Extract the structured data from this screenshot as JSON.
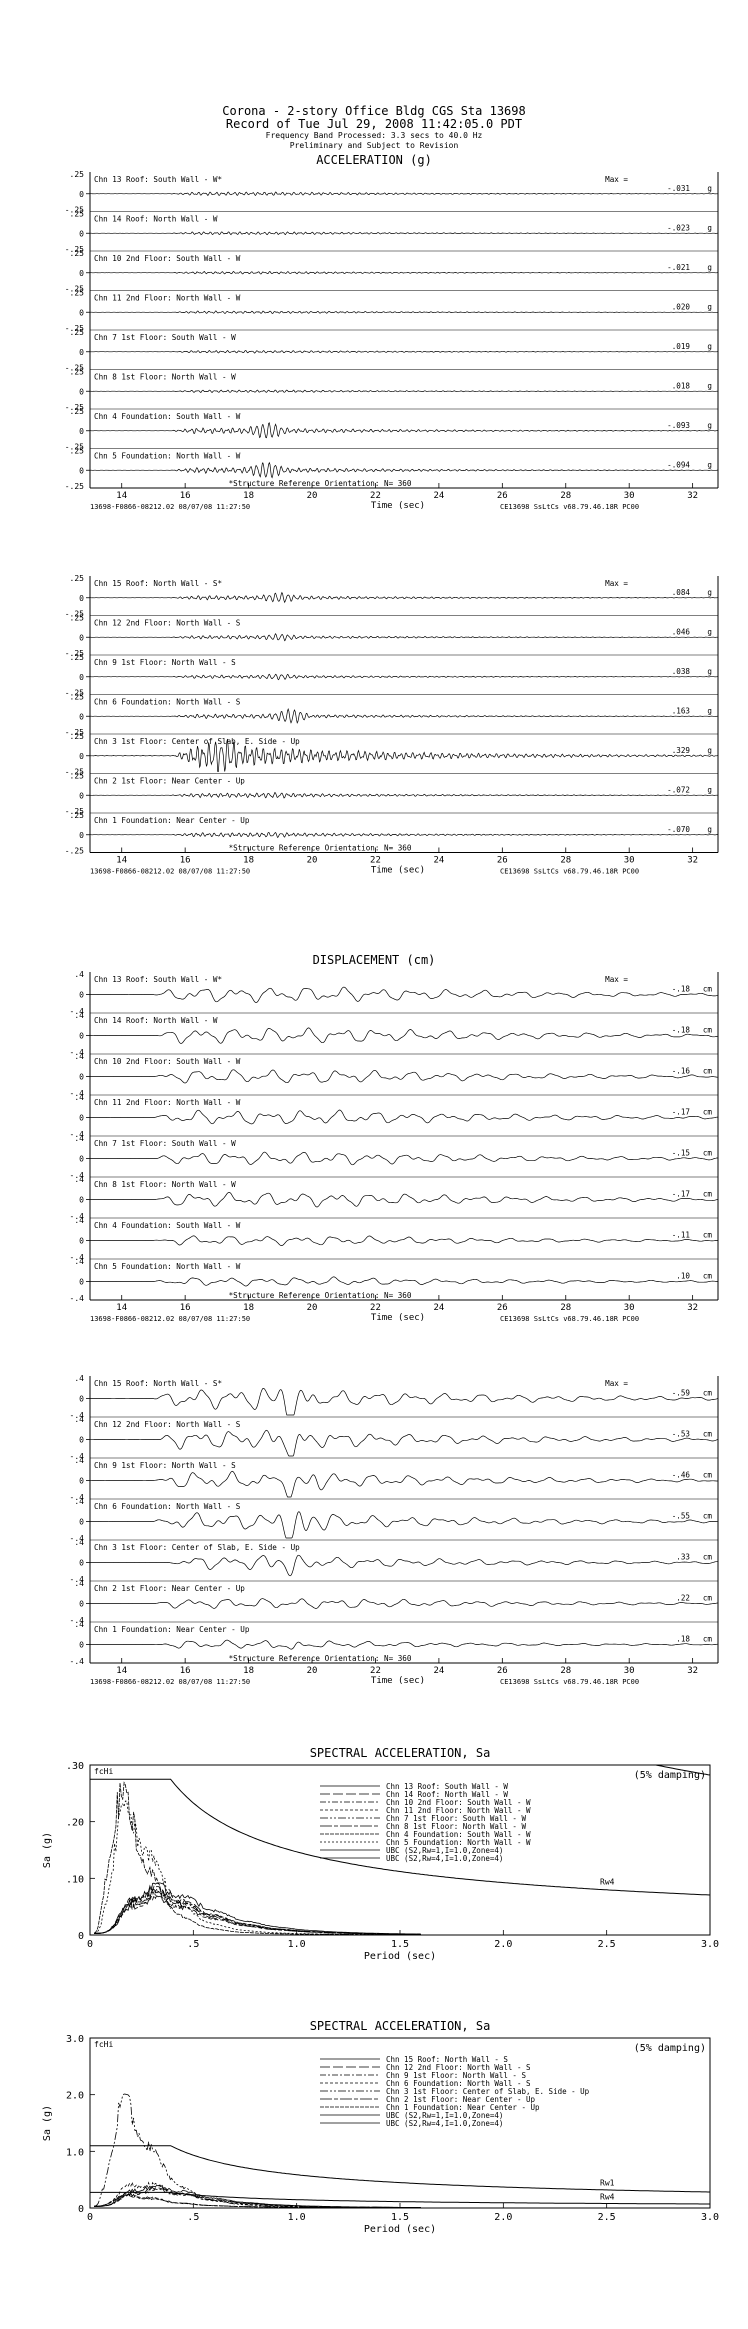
{
  "header": {
    "line1": "Corona - 2-story Office Bldg    CGS Sta 13698",
    "line2": "Record of Tue Jul 29, 2008 11:42:05.0 PDT",
    "line3": "Frequency Band Processed: 3.3 secs to 40.0 Hz",
    "line4": "Preliminary and Subject to Revision"
  },
  "sections": {
    "acceleration": "ACCELERATION (g)",
    "displacement": "DISPLACEMENT (cm)"
  },
  "chart_data": [
    {
      "type": "line",
      "id": "accel_top",
      "title": "ACCELERATION (g)",
      "xlabel": "Time (sec)",
      "xlim": [
        13,
        32.8
      ],
      "xticks": [
        14,
        16,
        18,
        20,
        22,
        24,
        26,
        28,
        30,
        32
      ],
      "y_tick_labels": [
        ".25",
        "0",
        "-.25"
      ],
      "unit": "g",
      "max_label": "Max =",
      "orientation_note": "*Structure Reference Orientation: N= 360",
      "footer_left": "13698-F0866-08212.02 08/07/08 11:27:50",
      "footer_right": "CE13698  SsLtCs  v68.79.46.18R PC00",
      "series": [
        {
          "name": "Chn 13  Roof: South Wall - W*",
          "max": "-.031",
          "amp": 0.05,
          "t0": 15.5,
          "tp": 19,
          "burst": 0
        },
        {
          "name": "Chn 14  Roof: North Wall - W",
          "max": "-.023",
          "amp": 0.04,
          "t0": 15.5,
          "tp": 19,
          "burst": 0
        },
        {
          "name": "Chn 10  2nd Floor: South Wall - W",
          "max": "-.021",
          "amp": 0.035,
          "t0": 15.5,
          "tp": 19,
          "burst": 0
        },
        {
          "name": "Chn 11  2nd Floor: North Wall - W",
          "max": ".020",
          "amp": 0.035,
          "t0": 15.5,
          "tp": 19,
          "burst": 0
        },
        {
          "name": "Chn 7  1st Floor: South Wall - W",
          "max": ".019",
          "amp": 0.035,
          "t0": 15.5,
          "tp": 19,
          "burst": 0
        },
        {
          "name": "Chn 8  1st Floor: North Wall - W",
          "max": ".018",
          "amp": 0.035,
          "t0": 15.5,
          "tp": 19,
          "burst": 0
        },
        {
          "name": "Chn 4  Foundation: South Wall - W",
          "max": "-.093",
          "amp": 0.08,
          "t0": 15.5,
          "tp": 18.6,
          "burst": 0.15
        },
        {
          "name": "Chn 5  Foundation: North Wall - W",
          "max": "-.094",
          "amp": 0.08,
          "t0": 15.5,
          "tp": 18.6,
          "burst": 0.15
        }
      ]
    },
    {
      "type": "line",
      "id": "accel_bottom",
      "xlabel": "Time (sec)",
      "xlim": [
        13,
        32.8
      ],
      "xticks": [
        14,
        16,
        18,
        20,
        22,
        24,
        26,
        28,
        30,
        32
      ],
      "y_tick_labels": [
        ".25",
        "0",
        "-.25"
      ],
      "unit": "g",
      "max_label": "Max =",
      "orientation_note": "*Structure Reference Orientation: N= 360",
      "footer_left": "13698-F0866-08212.02 08/07/08 11:27:50",
      "footer_right": "CE13698  SsLtCs  v68.79.46.18R PC00",
      "series": [
        {
          "name": "Chn 15  Roof: North Wall - S*",
          "max": ".084",
          "amp": 0.06,
          "t0": 15.5,
          "tp": 19,
          "burst": 0.08
        },
        {
          "name": "Chn 12  2nd Floor: North Wall - S",
          "max": ".046",
          "amp": 0.05,
          "t0": 15.5,
          "tp": 19,
          "burst": 0.05
        },
        {
          "name": "Chn 9  1st Floor: North Wall - S",
          "max": ".038",
          "amp": 0.045,
          "t0": 15.5,
          "tp": 19,
          "burst": 0.04
        },
        {
          "name": "Chn 6  Foundation: North Wall - S",
          "max": ".163",
          "amp": 0.06,
          "t0": 15.5,
          "tp": 19.4,
          "burst": 0.16
        },
        {
          "name": "Chn 3  1st Floor: Center of Slab, E. Side - Up",
          "max": ".329",
          "amp": 0.33,
          "t0": 15.6,
          "tp": 17.3,
          "burst": 0.2
        },
        {
          "name": "Chn 2  1st Floor: Near Center - Up",
          "max": "-.072",
          "amp": 0.06,
          "t0": 15.5,
          "tp": 19,
          "burst": 0.03
        },
        {
          "name": "Chn 1  Foundation: Near Center - Up",
          "max": "-.070",
          "amp": 0.06,
          "t0": 15.5,
          "tp": 19,
          "burst": 0.03
        }
      ]
    },
    {
      "type": "line",
      "id": "disp_top",
      "title": "DISPLACEMENT (cm)",
      "xlabel": "Time (sec)",
      "xlim": [
        13,
        32.8
      ],
      "xticks": [
        14,
        16,
        18,
        20,
        22,
        24,
        26,
        28,
        30,
        32
      ],
      "y_tick_labels": [
        ".4",
        "0",
        "-.4"
      ],
      "unit": "cm",
      "max_label": "Max =",
      "orientation_note": "*Structure Reference Orientation: N= 360",
      "footer_left": "13698-F0866-08212.02 08/07/08 11:27:50",
      "footer_right": "CE13698  SsLtCs  v68.79.46.18R PC00",
      "series": [
        {
          "name": "Chn 13  Roof: South Wall - W*",
          "max": "-.18",
          "amp": 0.45,
          "t0": 15,
          "tp": 21,
          "burst": 0
        },
        {
          "name": "Chn 14  Roof: North Wall - W",
          "max": "-.18",
          "amp": 0.45,
          "t0": 15,
          "tp": 21,
          "burst": 0
        },
        {
          "name": "Chn 10  2nd Floor: South Wall - W",
          "max": "-.16",
          "amp": 0.4,
          "t0": 15,
          "tp": 21,
          "burst": 0
        },
        {
          "name": "Chn 11  2nd Floor: North Wall - W",
          "max": "-.17",
          "amp": 0.42,
          "t0": 15,
          "tp": 21,
          "burst": 0
        },
        {
          "name": "Chn 7  1st Floor: South Wall - W",
          "max": "-.15",
          "amp": 0.38,
          "t0": 15,
          "tp": 21,
          "burst": 0
        },
        {
          "name": "Chn 8  1st Floor: North Wall - W",
          "max": "-.17",
          "amp": 0.42,
          "t0": 15,
          "tp": 21,
          "burst": 0
        },
        {
          "name": "Chn 4  Foundation: South Wall - W",
          "max": "-.11",
          "amp": 0.28,
          "t0": 15,
          "tp": 21,
          "burst": 0
        },
        {
          "name": "Chn 5  Foundation: North Wall - W",
          "max": ".10",
          "amp": 0.25,
          "t0": 15,
          "tp": 21,
          "burst": 0
        }
      ]
    },
    {
      "type": "line",
      "id": "disp_bottom",
      "xlabel": "Time (sec)",
      "xlim": [
        13,
        32.8
      ],
      "xticks": [
        14,
        16,
        18,
        20,
        22,
        24,
        26,
        28,
        30,
        32
      ],
      "y_tick_labels": [
        ".4",
        "0",
        "-.4"
      ],
      "unit": "cm",
      "max_label": "Max =",
      "orientation_note": "*Structure Reference Orientation: N= 360",
      "footer_left": "13698-F0866-08212.02 08/07/08 11:27:50",
      "footer_right": "CE13698  SsLtCs  v68.79.46.18R PC00",
      "series": [
        {
          "name": "Chn 15  Roof: North Wall - S*",
          "max": "-.59",
          "amp": 0.6,
          "t0": 15,
          "tp": 19.4,
          "burst": 1.4
        },
        {
          "name": "Chn 12  2nd Floor: North Wall - S",
          "max": "-.53",
          "amp": 0.55,
          "t0": 15,
          "tp": 19.4,
          "burst": 1.2
        },
        {
          "name": "Chn 9  1st Floor: North Wall - S",
          "max": "-.46",
          "amp": 0.5,
          "t0": 15,
          "tp": 19.4,
          "burst": 1.1
        },
        {
          "name": "Chn 6  Foundation: North Wall - S",
          "max": "-.55",
          "amp": 0.5,
          "t0": 15,
          "tp": 19.4,
          "burst": 1.3
        },
        {
          "name": "Chn 3  1st Floor: Center of Slab, E. Side - Up",
          "max": ".33",
          "amp": 0.4,
          "t0": 15.5,
          "tp": 19.4,
          "burst": 0.6
        },
        {
          "name": "Chn 2  1st Floor: Near Center - Up",
          "max": ".22",
          "amp": 0.3,
          "t0": 15,
          "tp": 21,
          "burst": 0
        },
        {
          "name": "Chn 1  Foundation: Near Center - Up",
          "max": ".18",
          "amp": 0.25,
          "t0": 15,
          "tp": 19.4,
          "burst": 0.4
        }
      ]
    },
    {
      "type": "line",
      "id": "spectral_top",
      "title": "SPECTRAL ACCELERATION, Sa",
      "xlabel": "Period (sec)",
      "ylabel": "Sa (g)",
      "xlim": [
        0,
        3.0
      ],
      "ylim": [
        0,
        0.3
      ],
      "xticks": [
        0,
        0.5,
        1.0,
        1.5,
        2.0,
        2.5,
        3.0
      ],
      "xtick_labels": [
        "0",
        ".5",
        "1.0",
        "1.5",
        "2.0",
        "2.5",
        "3.0"
      ],
      "yticks": [
        0,
        0.1,
        0.2,
        0.3
      ],
      "ytick_labels": [
        "0",
        ".10",
        ".20",
        ".30"
      ],
      "damping": "(5% damping)",
      "fchi_label": "fcHi",
      "code_labels": [
        "Rw4"
      ],
      "series": [
        {
          "name": "Chn 13  Roof: South Wall - W",
          "peak": 0.08,
          "tpk": 0.32
        },
        {
          "name": "Chn 14  Roof: North Wall - W",
          "peak": 0.075,
          "tpk": 0.3
        },
        {
          "name": "Chn 10  2nd Floor: South Wall - W",
          "peak": 0.07,
          "tpk": 0.3
        },
        {
          "name": "Chn 11  2nd Floor: North Wall - W",
          "peak": 0.068,
          "tpk": 0.31
        },
        {
          "name": "Chn 7  1st Floor: South Wall - W",
          "peak": 0.065,
          "tpk": 0.3
        },
        {
          "name": "Chn 8  1st Floor: North Wall - W",
          "peak": 0.06,
          "tpk": 0.3
        },
        {
          "name": "Chn 4  Foundation: South Wall - W",
          "peak": 0.23,
          "tpk": 0.15
        },
        {
          "name": "Chn 5  Foundation: North Wall - W",
          "peak": 0.2,
          "tpk": 0.18
        },
        {
          "name": "UBC (S2,Rw=1,I=1.0,Zone=4)",
          "kind": "ubc",
          "plateau": 1.1
        },
        {
          "name": "UBC (S2,Rw=4,I=1.0,Zone=4)",
          "kind": "ubc",
          "plateau": 0.275
        }
      ]
    },
    {
      "type": "line",
      "id": "spectral_bottom",
      "title": "SPECTRAL ACCELERATION, Sa",
      "xlabel": "Period (sec)",
      "ylabel": "Sa (g)",
      "xlim": [
        0,
        3.0
      ],
      "ylim": [
        0,
        3.0
      ],
      "xticks": [
        0,
        0.5,
        1.0,
        1.5,
        2.0,
        2.5,
        3.0
      ],
      "xtick_labels": [
        "0",
        ".5",
        "1.0",
        "1.5",
        "2.0",
        "2.5",
        "3.0"
      ],
      "yticks": [
        0,
        1.0,
        2.0,
        3.0
      ],
      "ytick_labels": [
        "0",
        "1.0",
        "2.0",
        "3.0"
      ],
      "damping": "(5% damping)",
      "fchi_label": "fcHi",
      "code_labels": [
        "Rw1",
        "Rw4"
      ],
      "series": [
        {
          "name": "Chn 15  Roof: North Wall - S",
          "peak": 0.35,
          "tpk": 0.3
        },
        {
          "name": "Chn 12  2nd Floor: North Wall - S",
          "peak": 0.3,
          "tpk": 0.3
        },
        {
          "name": "Chn 9  1st Floor: North Wall - S",
          "peak": 0.28,
          "tpk": 0.3
        },
        {
          "name": "Chn 6  Foundation: North Wall - S",
          "peak": 0.4,
          "tpk": 0.25
        },
        {
          "name": "Chn 3  1st Floor: Center of Slab, E. Side - Up",
          "peak": 1.7,
          "tpk": 0.17
        },
        {
          "name": "Chn 2  1st Floor: Near Center - Up",
          "peak": 0.2,
          "tpk": 0.2
        },
        {
          "name": "Chn 1  Foundation: Near Center - Up",
          "peak": 0.18,
          "tpk": 0.2
        },
        {
          "name": "UBC (S2,Rw=1,I=1.0,Zone=4)",
          "kind": "ubc",
          "plateau": 1.1
        },
        {
          "name": "UBC (S2,Rw=4,I=1.0,Zone=4)",
          "kind": "ubc",
          "plateau": 0.275
        }
      ]
    }
  ]
}
